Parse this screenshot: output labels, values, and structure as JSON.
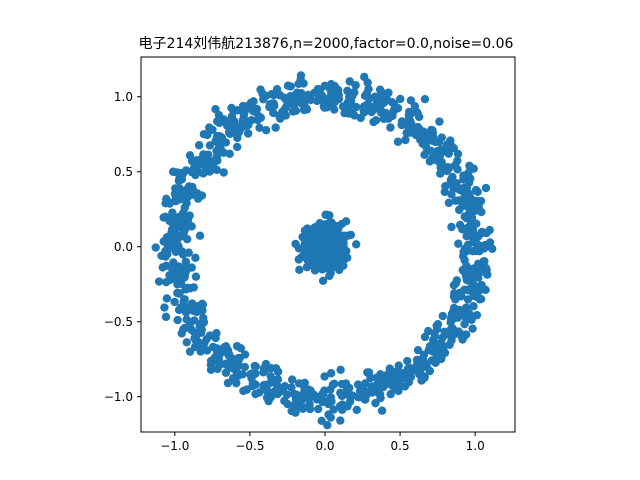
{
  "chart_data": {
    "type": "scatter",
    "title": "电子214刘伟航213876,n=2000,factor=0.0,noise=0.06",
    "xlabel": "",
    "ylabel": "",
    "xlim": [
      -1.225,
      1.265
    ],
    "ylim": [
      -1.235,
      1.265
    ],
    "aspect": "equal",
    "grid": false,
    "legend": "none",
    "marker_color": "#1f77b4",
    "x_ticks": [
      -1.0,
      -0.5,
      0.0,
      0.5,
      1.0
    ],
    "x_tick_labels": [
      "−1.0",
      "−0.5",
      "0.0",
      "0.5",
      "1.0"
    ],
    "y_ticks": [
      -1.0,
      -0.5,
      0.0,
      0.5,
      1.0
    ],
    "y_tick_labels": [
      "−1.0",
      "−0.5",
      "0.0",
      "0.5",
      "1.0"
    ],
    "series": [
      {
        "n_points": 2000,
        "outer_circle": {
          "center": [
            0.0,
            0.0
          ],
          "radius": 1.0,
          "noise_sd": 0.06,
          "n_points": 1000
        },
        "inner_circle": {
          "center": [
            0.0,
            0.0
          ],
          "radius": 0.0,
          "noise_sd": 0.06,
          "n_points": 1000
        }
      }
    ]
  }
}
